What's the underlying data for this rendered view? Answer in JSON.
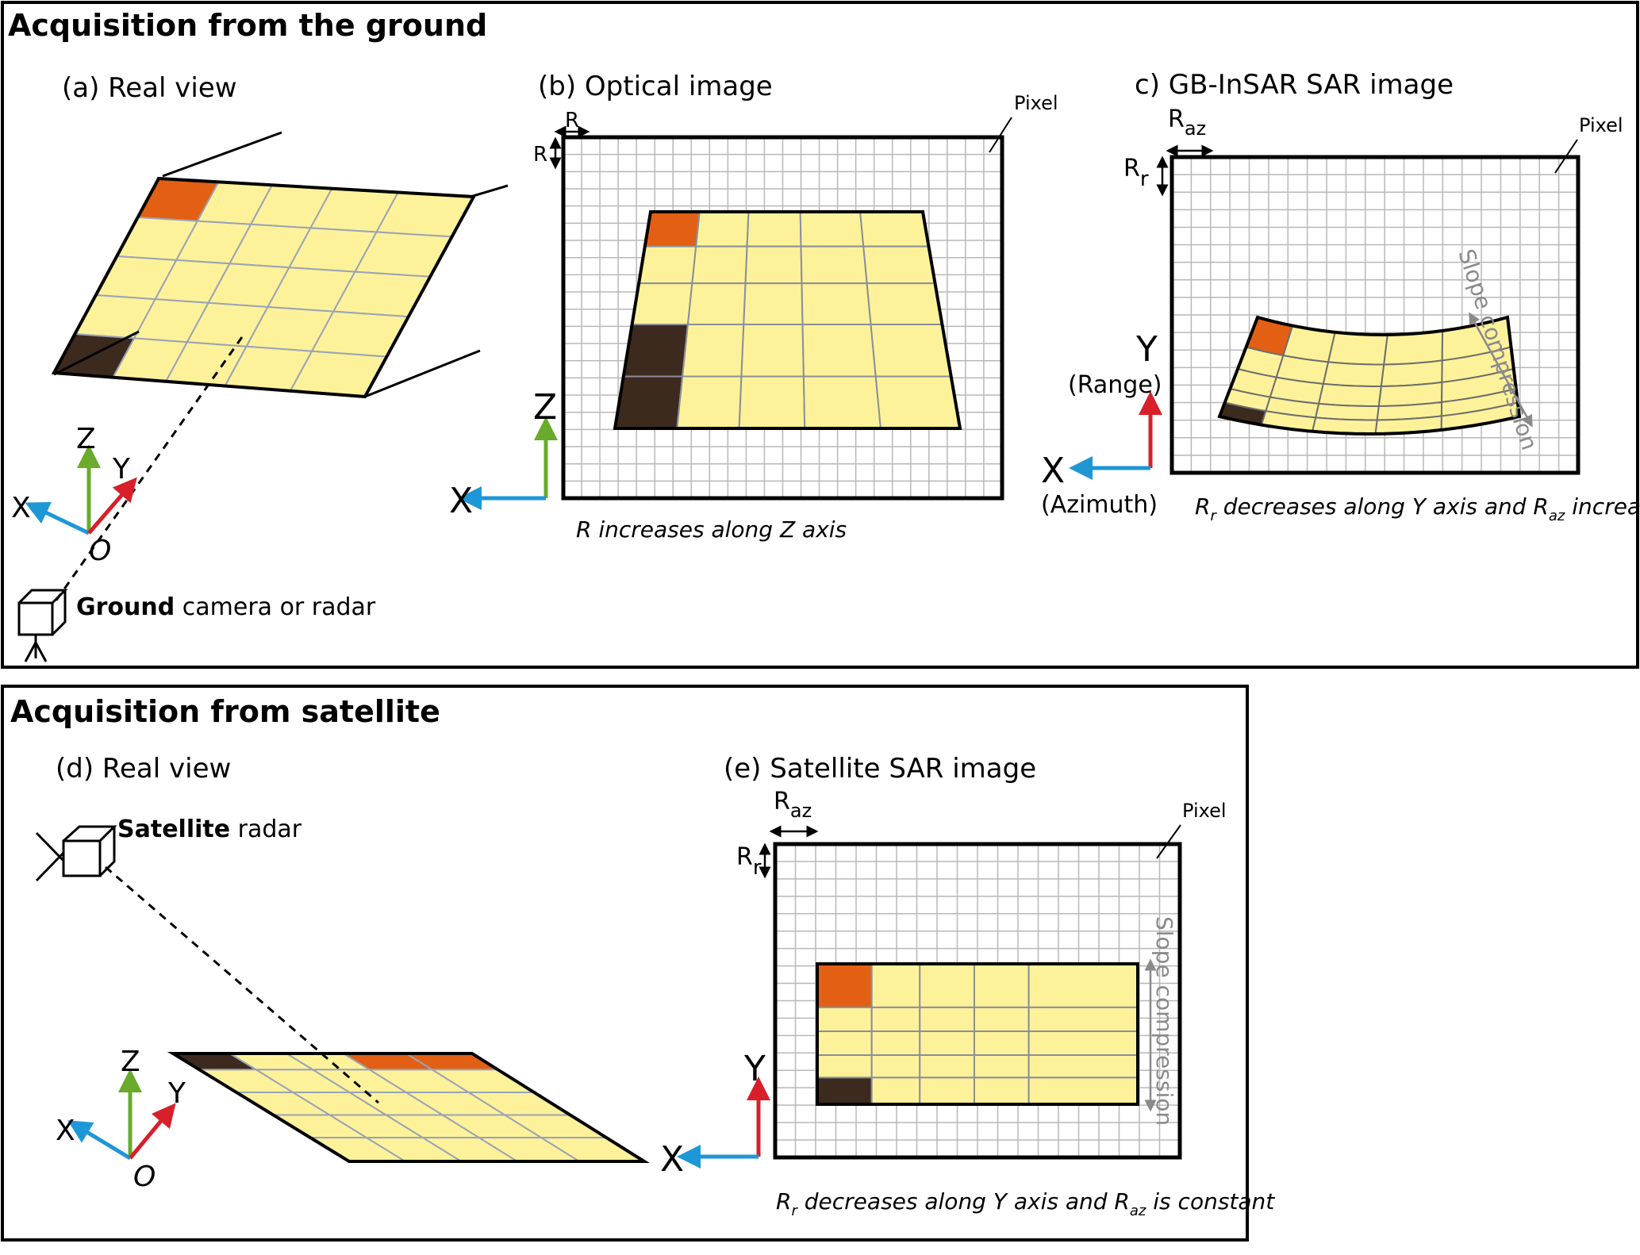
{
  "panels": {
    "ground": {
      "title": "Acquisition from the ground",
      "a": {
        "caption": "(a) Real view",
        "axes": {
          "x": "X",
          "y": "Y",
          "z": "Z",
          "origin": "O"
        },
        "sensor_bold": "Ground",
        "sensor_rest": " camera or radar"
      },
      "b": {
        "caption": "(b) Optical image",
        "pixel_label": "Pixel",
        "r_h": "R",
        "r_v": "R",
        "axis_x": "X",
        "axis_z": "Z",
        "note": "R increases along Z axis"
      },
      "c": {
        "caption": "c) GB-InSAR SAR image",
        "pixel_label": "Pixel",
        "raz_main": "R",
        "raz_sub": "az",
        "rr_main": "R",
        "rr_sub": "r",
        "axis_y": "Y",
        "axis_y_sub": "(Range)",
        "axis_x": "X",
        "axis_x_sub": "(Azimuth)",
        "slope": "Slope compression",
        "note": {
          "p1": "R",
          "p1_sub": "r",
          "p2": " decreases along Y axis and R",
          "p2_sub": "az",
          "p3": " increases"
        }
      }
    },
    "satellite": {
      "title": "Acquisition from satellite",
      "d": {
        "caption": "(d) Real view",
        "axes": {
          "x": "X",
          "y": "Y",
          "z": "Z",
          "origin": "O"
        },
        "sensor_bold": "Satellite",
        "sensor_rest": " radar"
      },
      "e": {
        "caption": "(e) Satellite SAR image",
        "pixel_label": "Pixel",
        "raz_main": "R",
        "raz_sub": "az",
        "rr_main": "R",
        "rr_sub": "r",
        "axis_y": "Y",
        "axis_x": "X",
        "slope": "Slope compression",
        "note": {
          "p1": "R",
          "p1_sub": "r",
          "p2": " decreases along Y axis and R",
          "p2_sub": "az",
          "p3": " is constant"
        }
      }
    }
  },
  "colors": {
    "tile": "#fdf29a",
    "orange": "#e35f14",
    "dark": "#3d2a1f",
    "axis_x": "#1e97d6",
    "axis_y": "#d81f2a",
    "axis_z": "#6aaa2c",
    "grid": "#b8b8b8"
  }
}
